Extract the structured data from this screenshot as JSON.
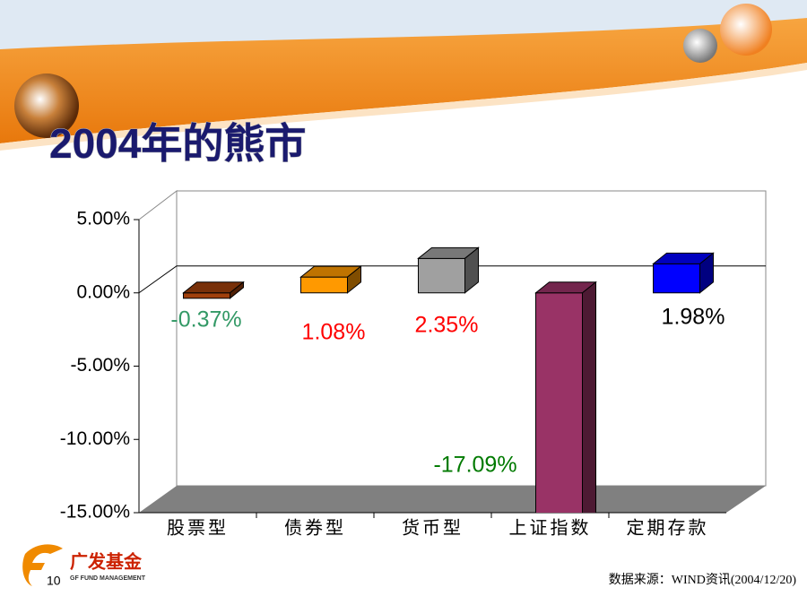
{
  "title": "2004年的熊市",
  "page_number": "10",
  "source": "数据来源：WIND资讯(2004/12/20)",
  "logo": {
    "name": "广发基金",
    "subtitle": "GF FUND MANAGEMENT"
  },
  "chart_data": {
    "type": "bar3d",
    "categories": [
      "股票型",
      "债券型",
      "货币型",
      "上证指数",
      "定期存款"
    ],
    "values": [
      -0.37,
      1.08,
      2.35,
      -17.09,
      1.98
    ],
    "value_labels": [
      "-0.37%",
      "1.08%",
      "2.35%",
      "-17.09%",
      "1.98%"
    ],
    "colors": [
      "#a0400c",
      "#ff9900",
      "#a0a0a0",
      "#993366",
      "#0000ff"
    ],
    "label_colors": [
      "#339966",
      "#ff0000",
      "#ff0000",
      "#007a00",
      "#000000"
    ],
    "ylim": [
      -15,
      5
    ],
    "yticks": [
      {
        "value": 5,
        "label": "5.00%"
      },
      {
        "value": 0,
        "label": "0.00%"
      },
      {
        "value": -5,
        "label": "-5.00%"
      },
      {
        "value": -10,
        "label": "-10.00%"
      },
      {
        "value": -15,
        "label": "-15.00%"
      }
    ]
  }
}
